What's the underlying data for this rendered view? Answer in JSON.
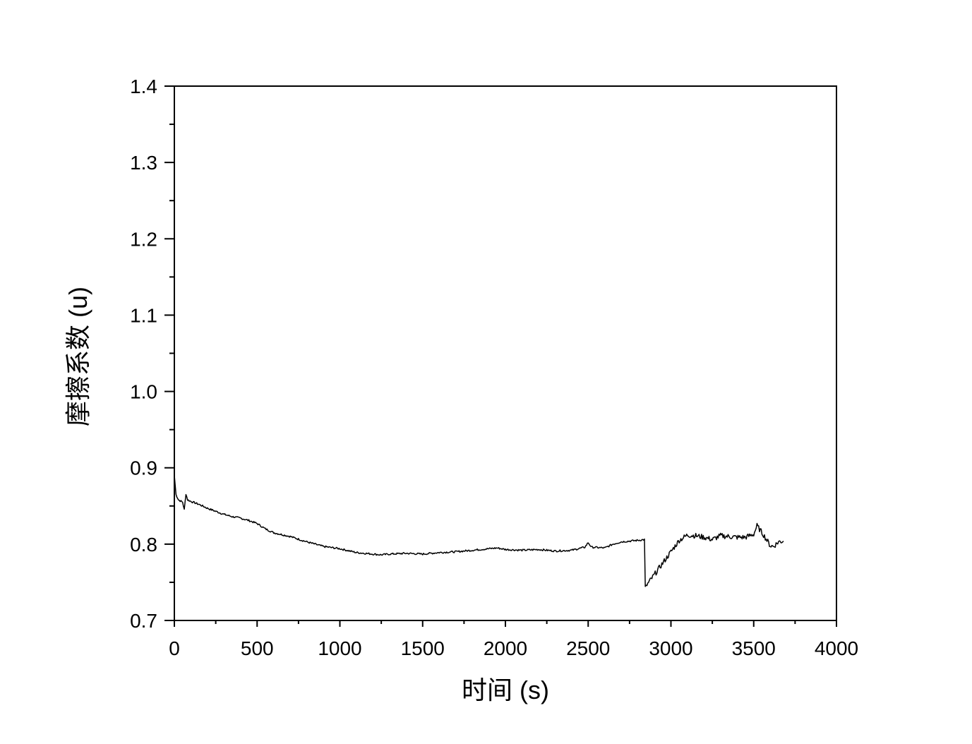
{
  "chart_data": {
    "type": "line",
    "xlabel": "时间 (s)",
    "ylabel": "摩擦系数 (u)",
    "xlim": [
      0,
      4000
    ],
    "ylim": [
      0.7,
      1.4
    ],
    "x_ticks": [
      "0",
      "500",
      "1000",
      "1500",
      "2000",
      "2500",
      "3000",
      "3500",
      "4000"
    ],
    "y_ticks": [
      "0.7",
      "0.8",
      "0.9",
      "1.0",
      "1.1",
      "1.2",
      "1.3",
      "1.4"
    ],
    "x_minor_step": 250,
    "y_minor_step": 0.05,
    "grid": false,
    "legend": "none",
    "line_color": "#000000",
    "series": [
      {
        "x": [
          0,
          10,
          25,
          50,
          60,
          70,
          80,
          100,
          150,
          200,
          250,
          300,
          350,
          400,
          450,
          500,
          550,
          600,
          700,
          800,
          900,
          1000,
          1100,
          1200,
          1250,
          1300,
          1400,
          1500,
          1600,
          1700,
          1800,
          1900,
          1950,
          2000,
          2100,
          2200,
          2300,
          2400,
          2480,
          2500,
          2520,
          2600,
          2650,
          2700,
          2750,
          2800,
          2840,
          2845,
          2860,
          2900,
          2950,
          3000,
          3050,
          3100,
          3150,
          3200,
          3250,
          3300,
          3350,
          3400,
          3450,
          3500,
          3520,
          3540,
          3560,
          3600,
          3620,
          3650,
          3680
        ],
        "y": [
          0.89,
          0.865,
          0.858,
          0.855,
          0.845,
          0.866,
          0.858,
          0.856,
          0.852,
          0.847,
          0.843,
          0.839,
          0.836,
          0.834,
          0.831,
          0.827,
          0.82,
          0.815,
          0.81,
          0.803,
          0.797,
          0.794,
          0.789,
          0.787,
          0.786,
          0.787,
          0.788,
          0.787,
          0.789,
          0.79,
          0.792,
          0.794,
          0.795,
          0.793,
          0.792,
          0.793,
          0.791,
          0.792,
          0.796,
          0.802,
          0.796,
          0.795,
          0.8,
          0.803,
          0.804,
          0.805,
          0.806,
          0.744,
          0.748,
          0.76,
          0.775,
          0.79,
          0.805,
          0.812,
          0.811,
          0.809,
          0.806,
          0.811,
          0.81,
          0.809,
          0.809,
          0.813,
          0.824,
          0.818,
          0.812,
          0.798,
          0.797,
          0.803,
          0.804
        ]
      }
    ]
  }
}
